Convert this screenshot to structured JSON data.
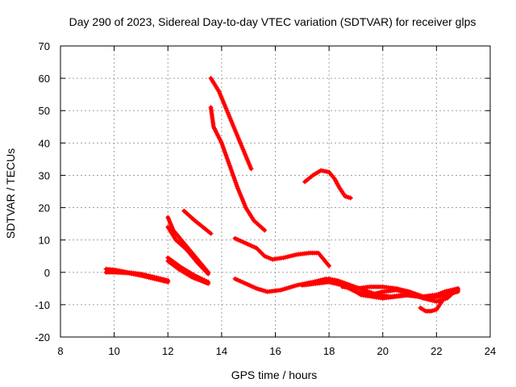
{
  "chart_data": {
    "type": "scatter",
    "title": "Day 290 of 2023, Sidereal Day-to-day VTEC variation (SDTVAR) for receiver glps",
    "xlabel": "GPS time / hours",
    "ylabel": "SDTVAR / TECUs",
    "xlim": [
      8,
      24
    ],
    "ylim": [
      -20,
      70
    ],
    "xticks": [
      8,
      10,
      12,
      14,
      16,
      18,
      20,
      22,
      24
    ],
    "yticks": [
      -20,
      -10,
      0,
      10,
      20,
      30,
      40,
      50,
      60,
      70
    ],
    "grid": true,
    "color": "#ff0000",
    "marker": "plus",
    "series": [
      {
        "name": "arc-01",
        "points": [
          [
            9.7,
            1
          ],
          [
            10,
            0.8
          ],
          [
            10.5,
            0
          ],
          [
            11,
            -0.5
          ],
          [
            11.5,
            -1.5
          ],
          [
            12,
            -2.5
          ]
        ]
      },
      {
        "name": "arc-02",
        "points": [
          [
            9.7,
            0
          ],
          [
            10,
            0
          ],
          [
            10.5,
            -0.2
          ],
          [
            11,
            -1
          ],
          [
            11.5,
            -2
          ],
          [
            12,
            -3
          ]
        ]
      },
      {
        "name": "arc-03",
        "points": [
          [
            12,
            17
          ],
          [
            12.2,
            13
          ],
          [
            12.6,
            9
          ],
          [
            13,
            5
          ],
          [
            13.3,
            2
          ],
          [
            13.5,
            0
          ]
        ]
      },
      {
        "name": "arc-04",
        "points": [
          [
            12,
            14
          ],
          [
            12.3,
            10
          ],
          [
            12.7,
            7
          ],
          [
            13.1,
            3
          ],
          [
            13.5,
            -0.5
          ]
        ]
      },
      {
        "name": "arc-05",
        "points": [
          [
            12,
            4.5
          ],
          [
            12.5,
            1.5
          ],
          [
            13,
            -1
          ],
          [
            13.5,
            -3
          ]
        ]
      },
      {
        "name": "arc-06",
        "points": [
          [
            12,
            3.5
          ],
          [
            12.4,
            1
          ],
          [
            12.9,
            -1.5
          ],
          [
            13.5,
            -3.5
          ]
        ]
      },
      {
        "name": "arc-07",
        "points": [
          [
            12.6,
            19
          ],
          [
            13,
            16
          ],
          [
            13.3,
            14
          ],
          [
            13.6,
            12
          ]
        ]
      },
      {
        "name": "arc-08",
        "points": [
          [
            13.6,
            60
          ],
          [
            13.9,
            56
          ],
          [
            14.2,
            50
          ],
          [
            14.5,
            44
          ],
          [
            14.8,
            38
          ],
          [
            15.1,
            32
          ]
        ]
      },
      {
        "name": "arc-09",
        "points": [
          [
            13.6,
            51
          ],
          [
            13.7,
            45
          ],
          [
            14,
            40
          ],
          [
            14.3,
            33
          ],
          [
            14.6,
            26
          ],
          [
            14.9,
            20
          ],
          [
            15.2,
            16
          ],
          [
            15.6,
            13
          ]
        ]
      },
      {
        "name": "arc-10",
        "points": [
          [
            14.5,
            10.5
          ],
          [
            14.9,
            9
          ],
          [
            15.3,
            7.5
          ],
          [
            15.6,
            5
          ],
          [
            15.9,
            4
          ],
          [
            16.3,
            4.5
          ],
          [
            16.8,
            5.5
          ],
          [
            17.3,
            6
          ],
          [
            17.6,
            6
          ],
          [
            17.8,
            4
          ],
          [
            18,
            2
          ]
        ]
      },
      {
        "name": "arc-11",
        "points": [
          [
            14.5,
            -2
          ],
          [
            14.9,
            -3.5
          ],
          [
            15.3,
            -5
          ],
          [
            15.7,
            -6
          ],
          [
            16.2,
            -5.5
          ],
          [
            16.8,
            -4
          ],
          [
            17.4,
            -3
          ],
          [
            17.9,
            -2
          ],
          [
            18.3,
            -2.5
          ],
          [
            18.8,
            -4
          ],
          [
            19.3,
            -5.5
          ],
          [
            19.8,
            -7
          ],
          [
            20.3,
            -7.5
          ],
          [
            20.8,
            -7
          ],
          [
            21.3,
            -7.5
          ],
          [
            21.8,
            -8
          ],
          [
            22.3,
            -7
          ],
          [
            22.8,
            -6
          ]
        ]
      },
      {
        "name": "arc-12",
        "points": [
          [
            17.1,
            28
          ],
          [
            17.4,
            30
          ],
          [
            17.7,
            31.5
          ],
          [
            18,
            31
          ],
          [
            18.2,
            29
          ],
          [
            18.4,
            26
          ],
          [
            18.6,
            23.5
          ],
          [
            18.8,
            23
          ]
        ]
      },
      {
        "name": "arc-13",
        "points": [
          [
            17,
            -4
          ],
          [
            17.5,
            -3.5
          ],
          [
            18,
            -3
          ],
          [
            18.5,
            -4
          ],
          [
            19,
            -6
          ],
          [
            19.5,
            -7
          ],
          [
            20,
            -6
          ],
          [
            20.5,
            -5.5
          ],
          [
            21,
            -6.5
          ],
          [
            21.5,
            -8
          ],
          [
            22,
            -9
          ],
          [
            22.4,
            -8
          ],
          [
            22.8,
            -5
          ]
        ]
      },
      {
        "name": "arc-14",
        "points": [
          [
            18,
            -2
          ],
          [
            18.4,
            -3
          ],
          [
            18.8,
            -5
          ],
          [
            19.2,
            -7
          ],
          [
            19.6,
            -7.5
          ],
          [
            20,
            -8
          ],
          [
            20.5,
            -7.5
          ],
          [
            21,
            -7
          ],
          [
            21.5,
            -7.5
          ],
          [
            22,
            -7
          ],
          [
            22.4,
            -6
          ],
          [
            22.8,
            -5.5
          ]
        ]
      },
      {
        "name": "arc-15",
        "points": [
          [
            18.5,
            -4.5
          ],
          [
            19,
            -5
          ],
          [
            19.5,
            -4.5
          ],
          [
            20,
            -4.5
          ],
          [
            20.5,
            -5
          ],
          [
            21,
            -6
          ],
          [
            21.5,
            -7.5
          ],
          [
            22,
            -7
          ],
          [
            22.3,
            -6
          ],
          [
            22.8,
            -5
          ]
        ]
      },
      {
        "name": "arc-16",
        "points": [
          [
            21.4,
            -11
          ],
          [
            21.6,
            -12
          ],
          [
            21.8,
            -12
          ],
          [
            22,
            -11.5
          ],
          [
            22.2,
            -9
          ],
          [
            22.4,
            -7
          ],
          [
            22.6,
            -6
          ],
          [
            22.8,
            -5.5
          ]
        ]
      }
    ]
  }
}
